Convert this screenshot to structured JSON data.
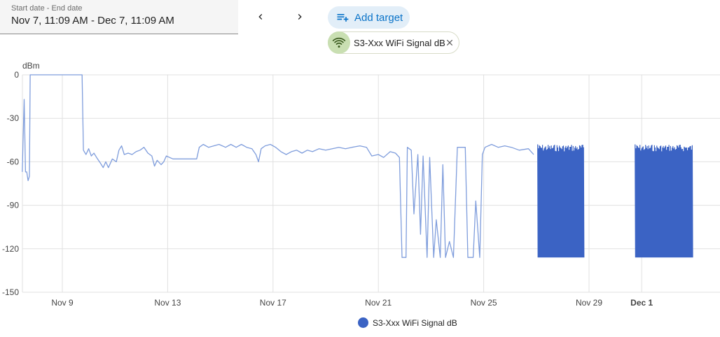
{
  "date_range": {
    "label": "Start date - End date",
    "value": "Nov 7, 11:09 AM - Dec 7, 11:09 AM"
  },
  "nav": {
    "prev_icon": "chevron-left-icon",
    "next_icon": "chevron-right-icon"
  },
  "add_target": {
    "label": "Add target",
    "icon": "playlist-add-icon",
    "color": "#0a73c8",
    "background": "#e2eef8"
  },
  "targets": [
    {
      "label": "S3-Xxx WiFi Signal dB",
      "icon": "wifi-icon",
      "icon_background": "#c9dfb2"
    }
  ],
  "chart_data": {
    "type": "line",
    "ylabel": "dBm",
    "xlabel": "",
    "ylim": [
      -150,
      0
    ],
    "yticks": [
      0,
      -30,
      -60,
      -90,
      -120,
      -150
    ],
    "xlim_days": [
      "Nov 7",
      "Dec 7"
    ],
    "xticks": [
      {
        "label": "Nov 9",
        "day": 9,
        "bold": false
      },
      {
        "label": "Nov 13",
        "day": 13,
        "bold": false
      },
      {
        "label": "Nov 17",
        "day": 17,
        "bold": false
      },
      {
        "label": "Nov 21",
        "day": 21,
        "bold": false
      },
      {
        "label": "Nov 25",
        "day": 25,
        "bold": false
      },
      {
        "label": "Nov 29",
        "day": 29,
        "bold": false
      },
      {
        "label": "Dec 1",
        "day": 31,
        "bold": true
      }
    ],
    "grid": true,
    "legend_position": "bottom-center",
    "series": [
      {
        "name": "S3-Xxx WiFi Signal dB",
        "color": "#3b63c4",
        "line_color": "#7f9ddc",
        "points": [
          [
            7.48,
            -67
          ],
          [
            7.55,
            -17
          ],
          [
            7.6,
            -67
          ],
          [
            7.65,
            -67
          ],
          [
            7.7,
            -73
          ],
          [
            7.75,
            -70
          ],
          [
            7.78,
            0
          ],
          [
            8.3,
            0
          ],
          [
            8.8,
            0
          ],
          [
            9.05,
            0
          ],
          [
            9.5,
            0
          ],
          [
            9.75,
            0
          ],
          [
            9.8,
            -52
          ],
          [
            9.9,
            -55
          ],
          [
            10.0,
            -51
          ],
          [
            10.1,
            -56
          ],
          [
            10.2,
            -54
          ],
          [
            10.3,
            -57
          ],
          [
            10.45,
            -61
          ],
          [
            10.55,
            -64
          ],
          [
            10.65,
            -60
          ],
          [
            10.75,
            -64
          ],
          [
            10.9,
            -58
          ],
          [
            11.05,
            -60
          ],
          [
            11.15,
            -52
          ],
          [
            11.25,
            -49
          ],
          [
            11.35,
            -55
          ],
          [
            11.5,
            -54
          ],
          [
            11.65,
            -55
          ],
          [
            11.8,
            -53
          ],
          [
            11.95,
            -52
          ],
          [
            12.1,
            -50
          ],
          [
            12.25,
            -54
          ],
          [
            12.4,
            -56
          ],
          [
            12.5,
            -63
          ],
          [
            12.6,
            -59
          ],
          [
            12.75,
            -62
          ],
          [
            12.85,
            -60
          ],
          [
            12.95,
            -56
          ],
          [
            13.2,
            -58
          ],
          [
            13.5,
            -58
          ],
          [
            13.8,
            -58
          ],
          [
            14.1,
            -58
          ],
          [
            14.2,
            -50
          ],
          [
            14.35,
            -48
          ],
          [
            14.55,
            -50
          ],
          [
            14.75,
            -49
          ],
          [
            14.95,
            -48
          ],
          [
            15.2,
            -50
          ],
          [
            15.4,
            -48
          ],
          [
            15.6,
            -50
          ],
          [
            15.8,
            -48
          ],
          [
            16.0,
            -50
          ],
          [
            16.2,
            -51
          ],
          [
            16.35,
            -55
          ],
          [
            16.45,
            -60
          ],
          [
            16.55,
            -51
          ],
          [
            16.7,
            -49
          ],
          [
            16.9,
            -48
          ],
          [
            17.1,
            -50
          ],
          [
            17.3,
            -53
          ],
          [
            17.5,
            -55
          ],
          [
            17.7,
            -53
          ],
          [
            17.9,
            -52
          ],
          [
            18.1,
            -54
          ],
          [
            18.3,
            -52
          ],
          [
            18.5,
            -53
          ],
          [
            18.75,
            -51
          ],
          [
            19.0,
            -52
          ],
          [
            19.25,
            -51
          ],
          [
            19.5,
            -50
          ],
          [
            19.75,
            -51
          ],
          [
            20.0,
            -50
          ],
          [
            20.3,
            -49
          ],
          [
            20.55,
            -50
          ],
          [
            20.75,
            -56
          ],
          [
            21.0,
            -55
          ],
          [
            21.2,
            -57
          ],
          [
            21.45,
            -53
          ],
          [
            21.65,
            -54
          ],
          [
            21.8,
            -57
          ],
          [
            21.9,
            -126
          ],
          [
            22.05,
            -126
          ],
          [
            22.1,
            -50
          ],
          [
            22.25,
            -52
          ],
          [
            22.35,
            -96
          ],
          [
            22.5,
            -55
          ],
          [
            22.6,
            -110
          ],
          [
            22.7,
            -56
          ],
          [
            22.85,
            -126
          ],
          [
            22.95,
            -57
          ],
          [
            23.1,
            -126
          ],
          [
            23.2,
            -100
          ],
          [
            23.35,
            -126
          ],
          [
            23.45,
            -62
          ],
          [
            23.55,
            -126
          ],
          [
            23.7,
            -115
          ],
          [
            23.85,
            -126
          ],
          [
            24.0,
            -50
          ],
          [
            24.3,
            -50
          ],
          [
            24.4,
            -126
          ],
          [
            24.6,
            -126
          ],
          [
            24.7,
            -87
          ],
          [
            24.85,
            -126
          ],
          [
            24.95,
            -55
          ],
          [
            25.05,
            -50
          ],
          [
            25.3,
            -48
          ],
          [
            25.55,
            -50
          ],
          [
            25.8,
            -49
          ],
          [
            26.05,
            -50
          ],
          [
            26.35,
            -52
          ],
          [
            26.7,
            -51
          ],
          [
            26.9,
            -55
          ]
        ],
        "dense_regions": [
          {
            "from": 27.05,
            "to": 28.8,
            "top": -48,
            "bottom": -126
          },
          {
            "from": 30.75,
            "to": 32.95,
            "top": -48,
            "bottom": -126
          }
        ]
      }
    ]
  }
}
